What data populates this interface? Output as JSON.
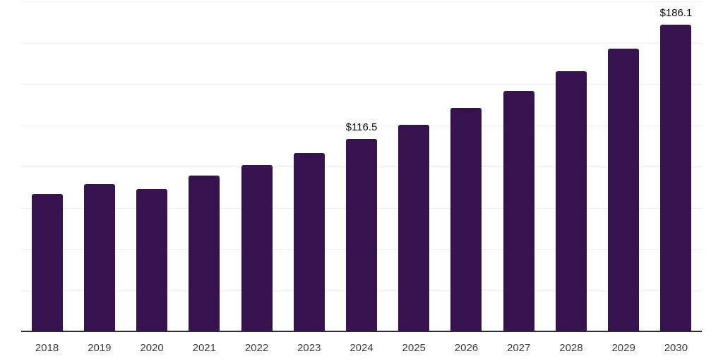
{
  "chart_data": {
    "type": "bar",
    "title": "",
    "xlabel": "",
    "ylabel": "",
    "categories": [
      "2018",
      "2019",
      "2020",
      "2021",
      "2022",
      "2023",
      "2024",
      "2025",
      "2026",
      "2027",
      "2028",
      "2029",
      "2030"
    ],
    "values": [
      83.3,
      89.3,
      86.3,
      94.3,
      100.9,
      108.0,
      116.5,
      125.3,
      135.3,
      145.6,
      157.7,
      171.4,
      186.1
    ],
    "data_labels": [
      {
        "category": "2024",
        "text": "$116.5"
      },
      {
        "category": "2030",
        "text": "$186.1"
      }
    ],
    "ylim": [
      0,
      200
    ],
    "grid": {
      "horizontal": true,
      "step": 25,
      "vertical": false
    },
    "legend": "none",
    "y_axis_labels_visible": false,
    "colors": {
      "bar": "#36124e",
      "axis": "#2d2d2d",
      "gridline": "#ededf0",
      "tick_label": "#3d3d3d",
      "data_label": "#0c0c0c",
      "background": "#ffffff"
    }
  }
}
